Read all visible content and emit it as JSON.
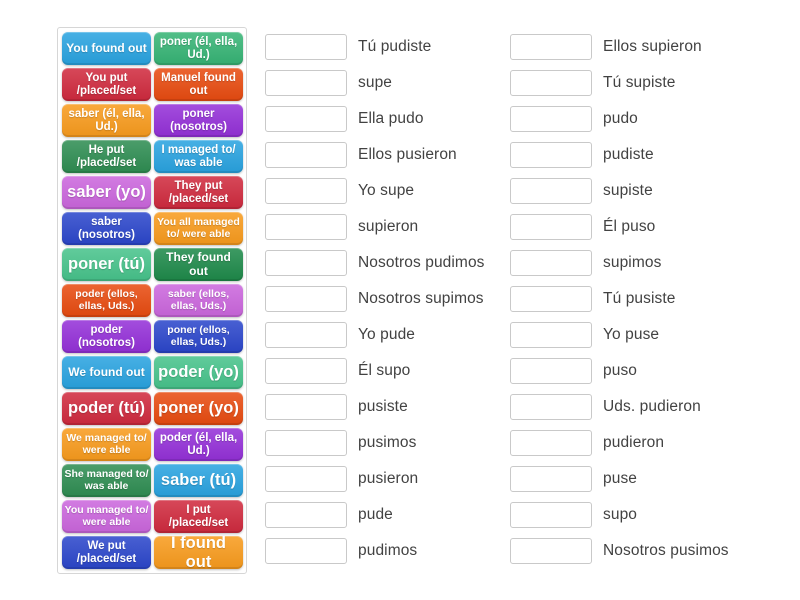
{
  "activity": {
    "kind": "match-up-exercise"
  },
  "palette": {
    "blue": "#29a3e0",
    "green": "#36b475",
    "lightgreen": "#47c38b",
    "forest": "#1e8a4a",
    "darkgreen": "#2e8d52",
    "red": "#d02a3e",
    "vermilion": "#e84b10",
    "orange": "#f89b1d",
    "purple": "#9430d8",
    "royalblue": "#2b46cb",
    "orchid": "#cb66dd",
    "tile_text": "#ffffff",
    "answer_text": "#424242",
    "box_border": "#c9c9c9",
    "board_border": "#d6d6d6"
  },
  "board": {
    "tiles": [
      {
        "text": "You found out",
        "color": "blue"
      },
      {
        "text": "poner (él, ella, Ud.)",
        "color": "green"
      },
      {
        "text": "You put /placed/set",
        "color": "red"
      },
      {
        "text": "Manuel found out",
        "color": "vermilion"
      },
      {
        "text": "saber (él, ella, Ud.)",
        "color": "orange"
      },
      {
        "text": "poner (nosotros)",
        "color": "purple"
      },
      {
        "text": "He put /placed/set",
        "color": "darkgreen"
      },
      {
        "text": "I managed to/ was able",
        "color": "blue"
      },
      {
        "text": "saber (yo)",
        "color": "orchid"
      },
      {
        "text": "They put /placed/set",
        "color": "red"
      },
      {
        "text": "saber (nosotros)",
        "color": "royalblue"
      },
      {
        "text": "You all managed to/ were able",
        "color": "orange"
      },
      {
        "text": "poner (tú)",
        "color": "lightgreen"
      },
      {
        "text": "They found out",
        "color": "forest"
      },
      {
        "text": "poder (ellos, ellas, Uds.)",
        "color": "vermilion"
      },
      {
        "text": "saber (ellos, ellas, Uds.)",
        "color": "orchid"
      },
      {
        "text": "poder (nosotros)",
        "color": "purple"
      },
      {
        "text": "poner (ellos, ellas, Uds.)",
        "color": "royalblue"
      },
      {
        "text": "We found out",
        "color": "blue"
      },
      {
        "text": "poder (yo)",
        "color": "lightgreen"
      },
      {
        "text": "poder (tú)",
        "color": "red"
      },
      {
        "text": "poner (yo)",
        "color": "vermilion"
      },
      {
        "text": "We managed to/ were able",
        "color": "orange"
      },
      {
        "text": "poder (él, ella, Ud.)",
        "color": "purple"
      },
      {
        "text": "She managed to/ was able",
        "color": "darkgreen"
      },
      {
        "text": "saber (tú)",
        "color": "blue"
      },
      {
        "text": "You managed to/ were able",
        "color": "orchid"
      },
      {
        "text": "I put /placed/set",
        "color": "red"
      },
      {
        "text": "We put /placed/set",
        "color": "royalblue"
      },
      {
        "text": "I found out",
        "color": "orange"
      }
    ]
  },
  "columns": {
    "middle": {
      "answers": [
        "Tú pudiste",
        "supe",
        "Ella pudo",
        "Ellos pusieron",
        "Yo supe",
        "supieron",
        "Nosotros pudimos",
        "Nosotros supimos",
        "Yo pude",
        "Él supo",
        "pusiste",
        "pusimos",
        "pusieron",
        "pude",
        "pudimos"
      ]
    },
    "right": {
      "answers": [
        "Ellos supieron",
        "Tú supiste",
        "pudo",
        "pudiste",
        "supiste",
        "Él puso",
        "supimos",
        "Tú pusiste",
        "Yo puse",
        "puso",
        "Uds. pudieron",
        "pudieron",
        "puse",
        "supo",
        "Nosotros pusimos"
      ]
    }
  }
}
